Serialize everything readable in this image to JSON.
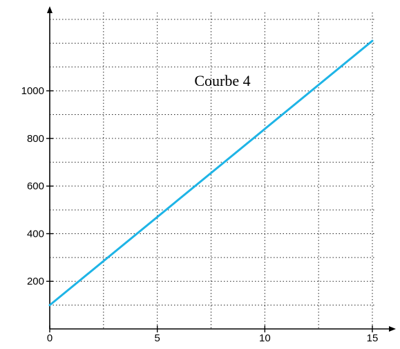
{
  "chart_data": {
    "type": "line",
    "title": "",
    "xlabel": "",
    "ylabel": "",
    "xlim": [
      0,
      15.4
    ],
    "ylim": [
      -40,
      1320
    ],
    "x_ticks": [
      0,
      5,
      10,
      15
    ],
    "x_tick_labels": [
      "0",
      "5",
      "10",
      "15"
    ],
    "y_ticks": [
      200,
      400,
      600,
      800,
      1000
    ],
    "y_tick_labels": [
      "200",
      "400",
      "600",
      "800",
      "1000"
    ],
    "grid": true,
    "grid_x": [
      0,
      2.5,
      5,
      7.5,
      10,
      12.5,
      15
    ],
    "grid_y": [
      0,
      100,
      200,
      300,
      400,
      500,
      600,
      700,
      800,
      900,
      1000,
      1100,
      1200,
      1300
    ],
    "annotation": "Courbe 4",
    "series": [
      {
        "color": "#1eb4e6",
        "x": [
          0,
          15
        ],
        "y": [
          100,
          1210
        ]
      }
    ]
  }
}
